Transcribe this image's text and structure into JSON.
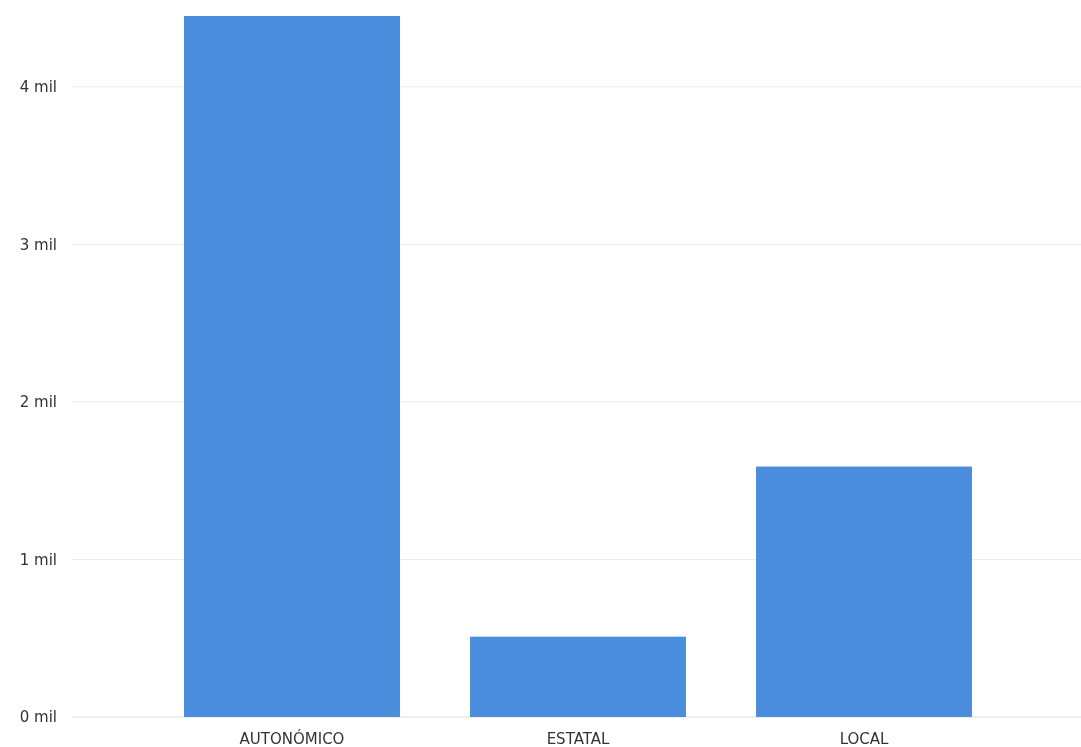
{
  "chart_data": {
    "type": "bar",
    "categories": [
      "AUTONÓMICO",
      "ESTATAL",
      "LOCAL"
    ],
    "values": [
      4.45,
      0.51,
      1.59
    ],
    "color": "#4a8ddc",
    "ylim": [
      0,
      4.45
    ],
    "yticks": [
      {
        "value": 0,
        "label": "0 mil"
      },
      {
        "value": 1,
        "label": "1 mil"
      },
      {
        "value": 2,
        "label": "2 mil"
      },
      {
        "value": 3,
        "label": "3 mil"
      },
      {
        "value": 4,
        "label": "4 mil"
      }
    ],
    "grid": "y"
  }
}
